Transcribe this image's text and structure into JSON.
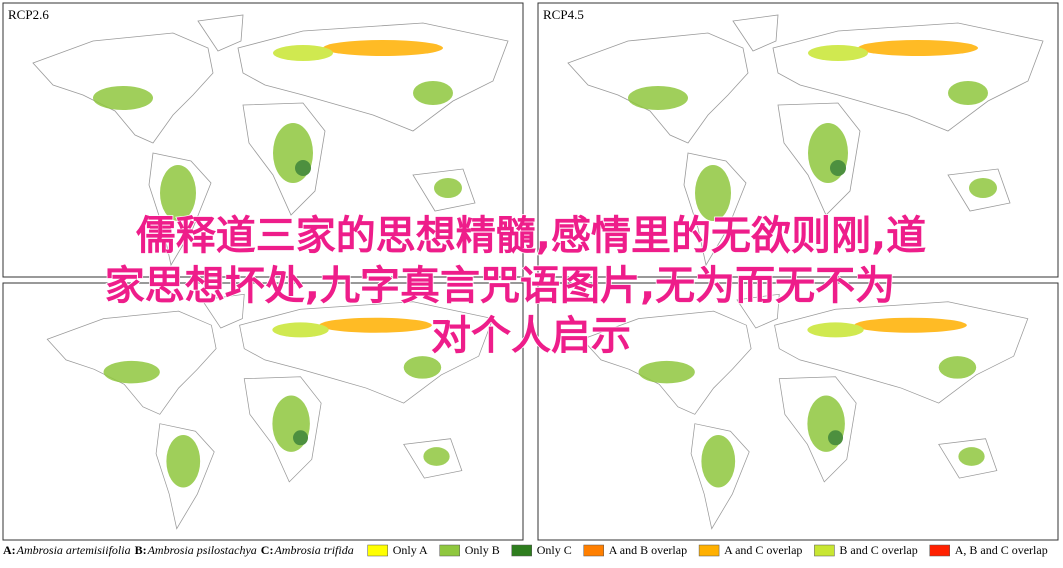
{
  "overlay_title": {
    "lines": [
      "儒释道三家的思想精髓,感情里的无欲则刚,道",
      "家思想坏处,九字真言咒语图片,无为而无不为",
      "对个人启示"
    ]
  },
  "panels": [
    {
      "label": "RCP2.6"
    },
    {
      "label": "RCP4.5"
    }
  ],
  "legend": {
    "species": [
      {
        "key": "A:",
        "name": "Ambrosia artemisiifolia"
      },
      {
        "key": "B:",
        "name": "Ambrosia psilostachya"
      },
      {
        "key": "C:",
        "name": "Ambrosia trifida"
      }
    ],
    "classes": [
      {
        "label": "Only A",
        "color": "#ffff00"
      },
      {
        "label": "Only B",
        "color": "#8fc73e"
      },
      {
        "label": "Only C",
        "color": "#2e7d1e"
      },
      {
        "label": "A and B overlap",
        "color": "#ff7f00"
      },
      {
        "label": "A and C overlap",
        "color": "#ffb000"
      },
      {
        "label": "B and C overlap",
        "color": "#c8e632"
      },
      {
        "label": "A, B and C overlap",
        "color": "#ff2000"
      }
    ]
  }
}
